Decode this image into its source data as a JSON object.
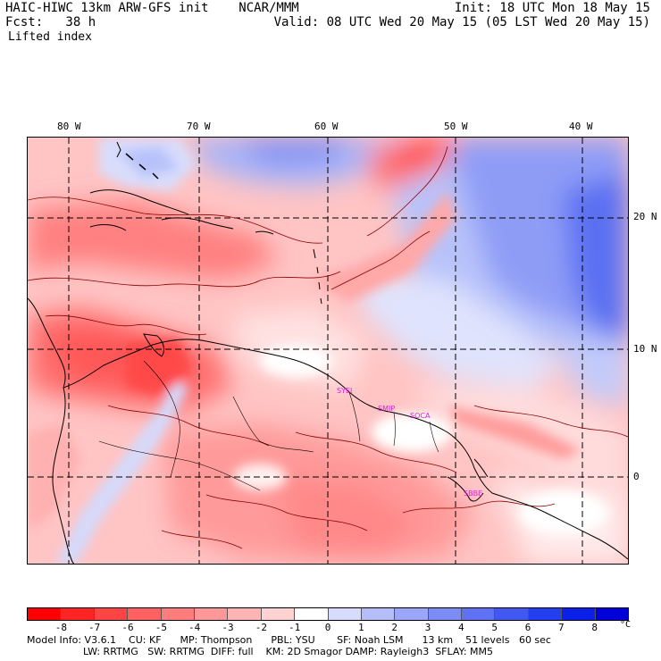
{
  "header": {
    "model_title": "HAIC-HIWC 13km ARW-GFS init    NCAR/MMM",
    "forecast_label": "Fcst:   38 h",
    "field_name": "Lifted index",
    "init_time": "Init: 18 UTC Mon 18 May 15",
    "valid_time": "Valid: 08 UTC Wed 20 May 15 (05 LST Wed 20 May 15)"
  },
  "map": {
    "longitude_labels": [
      "80 W",
      "70 W",
      "60 W",
      "50 W",
      "40 W"
    ],
    "latitude_labels": [
      "20 N",
      "10 N",
      "0"
    ],
    "stations": [
      {
        "id": "SVFI",
        "label": "SYEI"
      },
      {
        "id": "SMJP",
        "label": "SMJP"
      },
      {
        "id": "SOCA",
        "label": "SOCA"
      },
      {
        "id": "SBBE",
        "label": "SBBE"
      }
    ]
  },
  "colorbar": {
    "unit": "°C",
    "tick_labels": [
      "-8",
      "-7",
      "-6",
      "-5",
      "-4",
      "-3",
      "-2",
      "-1",
      "0",
      "1",
      "2",
      "3",
      "4",
      "5",
      "6",
      "7",
      "8"
    ],
    "colors": [
      "#ff0000",
      "#ff2424",
      "#ff4444",
      "#ff6060",
      "#fd7c7c",
      "#fe9898",
      "#ffb4b4",
      "#ffd2d2",
      "#ffffff",
      "#d6dcfc",
      "#b6befa",
      "#9aa6f8",
      "#7c8cf6",
      "#5e72f3",
      "#4158f1",
      "#2240ef",
      "#0a20e8",
      "#0000d8"
    ]
  },
  "footer": {
    "line1": "Model Info: V3.6.1    CU: KF      MP: Thompson      PBL: YSU       SF: Noah LSM      13 km    51 levels   60 sec",
    "line2": "LW: RRTMG   SW: RRTMG  DIFF: full    KM: 2D Smagor DAMP: Rayleigh3  SFLAY: MM5"
  }
}
